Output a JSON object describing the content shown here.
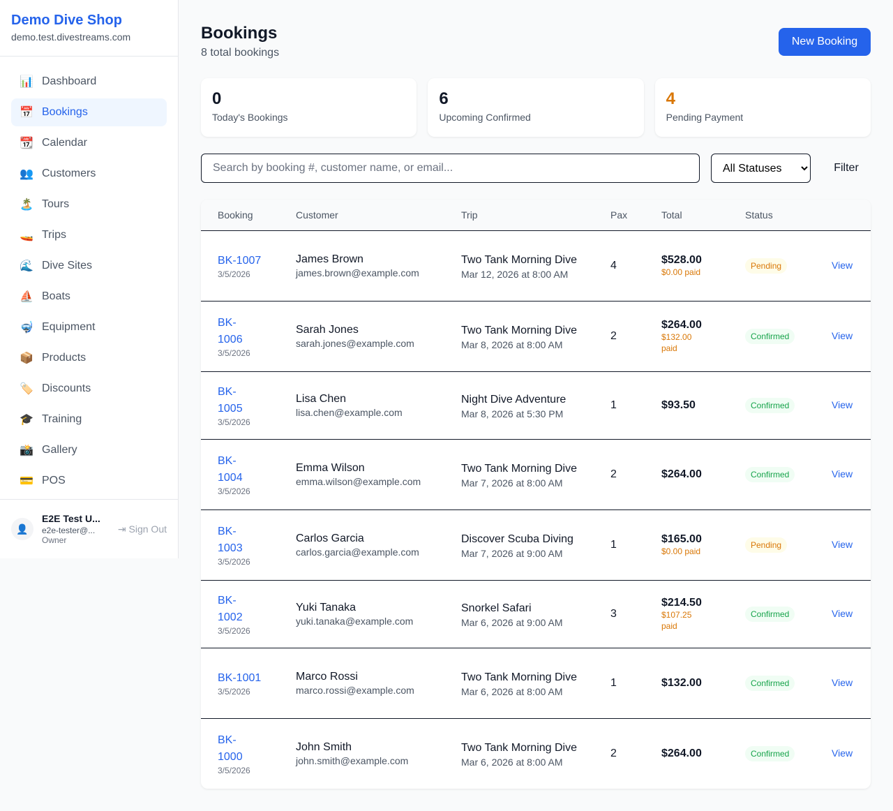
{
  "sidebar": {
    "brand": "Demo Dive Shop",
    "domain": "demo.test.divestreams.com",
    "items": [
      {
        "icon": "📊",
        "label": "Dashboard"
      },
      {
        "icon": "📅",
        "label": "Bookings",
        "active": true
      },
      {
        "icon": "📆",
        "label": "Calendar"
      },
      {
        "icon": "👥",
        "label": "Customers"
      },
      {
        "icon": "🏝️",
        "label": "Tours"
      },
      {
        "icon": "🚤",
        "label": "Trips"
      },
      {
        "icon": "🌊",
        "label": "Dive Sites"
      },
      {
        "icon": "⛵",
        "label": "Boats"
      },
      {
        "icon": "🤿",
        "label": "Equipment"
      },
      {
        "icon": "📦",
        "label": "Products"
      },
      {
        "icon": "🏷️",
        "label": "Discounts"
      },
      {
        "icon": "🎓",
        "label": "Training"
      },
      {
        "icon": "📸",
        "label": "Gallery"
      },
      {
        "icon": "💳",
        "label": "POS"
      }
    ],
    "user": {
      "name": "E2E Test U...",
      "email": "e2e-tester@...",
      "role": "Owner",
      "sign_out": "Sign Out"
    }
  },
  "header": {
    "title": "Bookings",
    "subtitle": "8 total bookings",
    "new_button": "New Booking"
  },
  "stats": [
    {
      "value": "0",
      "label": "Today's Bookings",
      "color": "#111827"
    },
    {
      "value": "6",
      "label": "Upcoming Confirmed",
      "color": "#111827"
    },
    {
      "value": "4",
      "label": "Pending Payment",
      "color": "#d97706"
    }
  ],
  "search": {
    "placeholder": "Search by booking #, customer name, or email...",
    "status_selected": "All Statuses",
    "filter_label": "Filter"
  },
  "table": {
    "headers": [
      "Booking",
      "Customer",
      "Trip",
      "Pax",
      "Total",
      "Status",
      ""
    ],
    "rows": [
      {
        "id": "BK-1007",
        "date": "3/5/2026",
        "customer": "James Brown",
        "email": "james.brown@example.com",
        "trip": "Two Tank Morning Dive",
        "trip_date": "Mar 12, 2026 at 8:00 AM",
        "pax": "4",
        "total": "$528.00",
        "paid": "$0.00 paid",
        "status": "Pending",
        "action": "View"
      },
      {
        "id": "BK-1006",
        "date": "3/5/2026",
        "customer": "Sarah Jones",
        "email": "sarah.jones@example.com",
        "trip": "Two Tank Morning Dive",
        "trip_date": "Mar 8, 2026 at 8:00 AM",
        "pax": "2",
        "total": "$264.00",
        "paid": "$132.00 paid",
        "status": "Confirmed",
        "action": "View"
      },
      {
        "id": "BK-1005",
        "date": "3/5/2026",
        "customer": "Lisa Chen",
        "email": "lisa.chen@example.com",
        "trip": "Night Dive Adventure",
        "trip_date": "Mar 8, 2026 at 5:30 PM",
        "pax": "1",
        "total": "$93.50",
        "paid": "",
        "status": "Confirmed",
        "action": "View"
      },
      {
        "id": "BK-1004",
        "date": "3/5/2026",
        "customer": "Emma Wilson",
        "email": "emma.wilson@example.com",
        "trip": "Two Tank Morning Dive",
        "trip_date": "Mar 7, 2026 at 8:00 AM",
        "pax": "2",
        "total": "$264.00",
        "paid": "",
        "status": "Confirmed",
        "action": "View"
      },
      {
        "id": "BK-1003",
        "date": "3/5/2026",
        "customer": "Carlos Garcia",
        "email": "carlos.garcia@example.com",
        "trip": "Discover Scuba Diving",
        "trip_date": "Mar 7, 2026 at 9:00 AM",
        "pax": "1",
        "total": "$165.00",
        "paid": "$0.00 paid",
        "status": "Pending",
        "action": "View"
      },
      {
        "id": "BK-1002",
        "date": "3/5/2026",
        "customer": "Yuki Tanaka",
        "email": "yuki.tanaka@example.com",
        "trip": "Snorkel Safari",
        "trip_date": "Mar 6, 2026 at 9:00 AM",
        "pax": "3",
        "total": "$214.50",
        "paid": "$107.25 paid",
        "status": "Confirmed",
        "action": "View"
      },
      {
        "id": "BK-1001",
        "date": "3/5/2026",
        "customer": "Marco Rossi",
        "email": "marco.rossi@example.com",
        "trip": "Two Tank Morning Dive",
        "trip_date": "Mar 6, 2026 at 8:00 AM",
        "pax": "1",
        "total": "$132.00",
        "paid": "",
        "status": "Confirmed",
        "action": "View"
      },
      {
        "id": "BK-1000",
        "date": "3/5/2026",
        "customer": "John Smith",
        "email": "john.smith@example.com",
        "trip": "Two Tank Morning Dive",
        "trip_date": "Mar 6, 2026 at 8:00 AM",
        "pax": "2",
        "total": "$264.00",
        "paid": "",
        "status": "Confirmed",
        "action": "View"
      }
    ]
  }
}
